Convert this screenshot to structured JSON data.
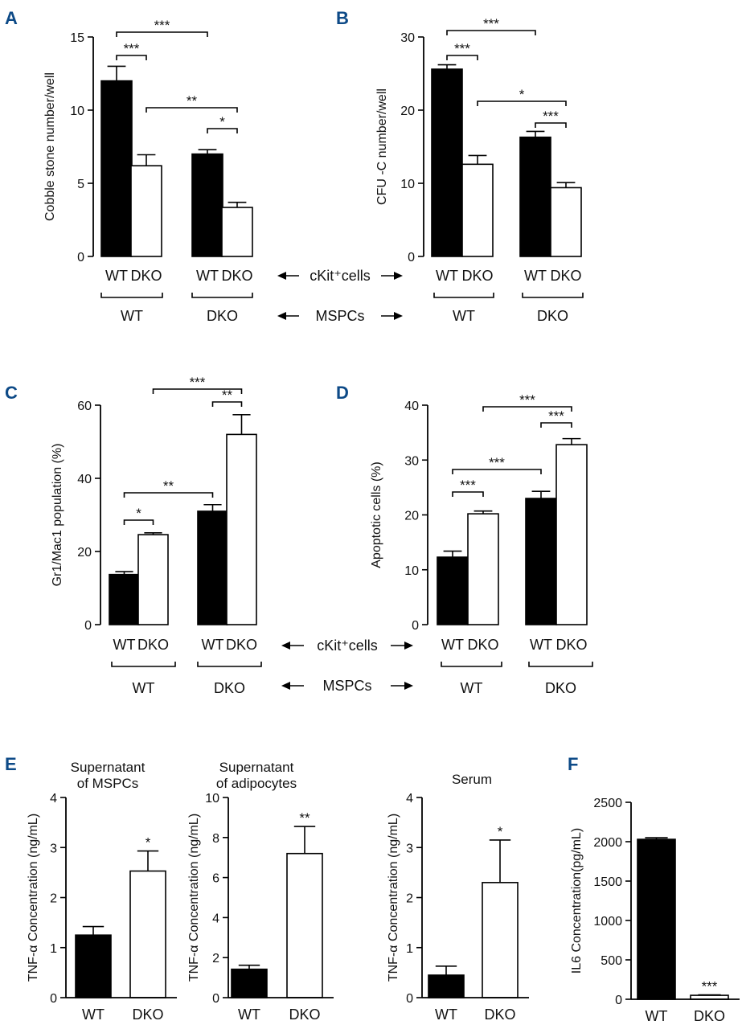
{
  "figure": {
    "shared_labels": {
      "ckit_row": "cKit⁺cells",
      "mspc_row": "MSPCs",
      "group_wt": "WT",
      "group_dko": "DKO"
    }
  },
  "chart_data": [
    {
      "panel": "A",
      "type": "bar",
      "ylabel": "Cobble stone number/well",
      "ylim": [
        0,
        15
      ],
      "yticks": [
        0,
        5,
        10,
        15
      ],
      "categories": [
        "WT",
        "DKO",
        "WT",
        "DKO"
      ],
      "groups": [
        "WT",
        "DKO"
      ],
      "values": [
        12.0,
        6.2,
        7.0,
        3.35
      ],
      "errors": [
        1.0,
        0.75,
        0.3,
        0.35
      ],
      "fills": [
        "#000000",
        "#ffffff",
        "#000000",
        "#ffffff"
      ],
      "significance": [
        {
          "from": 0,
          "to": 1,
          "label": "***"
        },
        {
          "from": 0,
          "to": 2,
          "label": "***"
        },
        {
          "from": 1,
          "to": 3,
          "label": "**"
        },
        {
          "from": 2,
          "to": 3,
          "label": "*"
        }
      ]
    },
    {
      "panel": "B",
      "type": "bar",
      "ylabel": "CFU -C number/well",
      "ylim": [
        0,
        30
      ],
      "yticks": [
        0,
        10,
        20,
        30
      ],
      "categories": [
        "WT",
        "DKO",
        "WT",
        "DKO"
      ],
      "groups": [
        "WT",
        "DKO"
      ],
      "values": [
        25.6,
        12.6,
        16.3,
        9.4
      ],
      "errors": [
        0.6,
        1.2,
        0.8,
        0.7
      ],
      "fills": [
        "#000000",
        "#ffffff",
        "#000000",
        "#ffffff"
      ],
      "significance": [
        {
          "from": 0,
          "to": 1,
          "label": "***"
        },
        {
          "from": 0,
          "to": 2,
          "label": "***"
        },
        {
          "from": 1,
          "to": 3,
          "label": "*"
        },
        {
          "from": 2,
          "to": 3,
          "label": "***"
        }
      ]
    },
    {
      "panel": "C",
      "type": "bar",
      "ylabel": "Gr1/Mac1 population (%)",
      "ylim": [
        0,
        60
      ],
      "yticks": [
        0,
        20,
        40,
        60
      ],
      "categories": [
        "WT",
        "DKO",
        "WT",
        "DKO"
      ],
      "groups": [
        "WT",
        "DKO"
      ],
      "values": [
        13.7,
        24.6,
        31.0,
        52.0
      ],
      "errors": [
        0.8,
        0.5,
        1.8,
        5.4
      ],
      "fills": [
        "#000000",
        "#ffffff",
        "#000000",
        "#ffffff"
      ],
      "significance": [
        {
          "from": 0,
          "to": 1,
          "label": "*"
        },
        {
          "from": 0,
          "to": 2,
          "label": "**"
        },
        {
          "from": 1,
          "to": 3,
          "label": "***"
        },
        {
          "from": 2,
          "to": 3,
          "label": "**"
        }
      ]
    },
    {
      "panel": "D",
      "type": "bar",
      "ylabel": "Apoptotic cells (%)",
      "ylim": [
        0,
        40
      ],
      "yticks": [
        0,
        10,
        20,
        30,
        40
      ],
      "categories": [
        "WT",
        "DKO",
        "WT",
        "DKO"
      ],
      "groups": [
        "WT",
        "DKO"
      ],
      "values": [
        12.3,
        20.2,
        23.0,
        32.8
      ],
      "errors": [
        1.1,
        0.5,
        1.3,
        1.1
      ],
      "fills": [
        "#000000",
        "#ffffff",
        "#000000",
        "#ffffff"
      ],
      "significance": [
        {
          "from": 0,
          "to": 1,
          "label": "***"
        },
        {
          "from": 0,
          "to": 2,
          "label": "***"
        },
        {
          "from": 1,
          "to": 3,
          "label": "***"
        },
        {
          "from": 2,
          "to": 3,
          "label": "***"
        }
      ]
    },
    {
      "panel": "E",
      "type": "bar",
      "title": "Supernatant\nof MSPCs",
      "ylabel": "TNF-α Concentration (ng/mL)",
      "ylim": [
        0,
        4
      ],
      "yticks": [
        0,
        1,
        2,
        3,
        4
      ],
      "categories": [
        "WT",
        "DKO"
      ],
      "values": [
        1.25,
        2.53
      ],
      "errors": [
        0.17,
        0.4
      ],
      "fills": [
        "#000000",
        "#ffffff"
      ],
      "bar_labels": [
        "",
        "*"
      ]
    },
    {
      "type": "bar",
      "title": "Supernatant\nof adipocytes",
      "ylabel": "TNF-α Concentration (ng/mL)",
      "ylim": [
        0,
        10
      ],
      "yticks": [
        0,
        2,
        4,
        6,
        8,
        10
      ],
      "categories": [
        "WT",
        "DKO"
      ],
      "values": [
        1.42,
        7.2
      ],
      "errors": [
        0.2,
        1.35
      ],
      "fills": [
        "#000000",
        "#ffffff"
      ],
      "bar_labels": [
        "",
        "**"
      ]
    },
    {
      "type": "bar",
      "title": "Serum",
      "ylabel": "TNF-α Concentration (ng/mL)",
      "ylim": [
        0,
        4
      ],
      "yticks": [
        0,
        1,
        2,
        3,
        4
      ],
      "categories": [
        "WT",
        "DKO"
      ],
      "values": [
        0.45,
        2.3
      ],
      "errors": [
        0.18,
        0.85
      ],
      "fills": [
        "#000000",
        "#ffffff"
      ],
      "bar_labels": [
        "",
        "*"
      ]
    },
    {
      "panel": "F",
      "type": "bar",
      "ylabel": "IL6 Concentration(pg/mL)",
      "ylim": [
        0,
        2500
      ],
      "yticks": [
        0,
        500,
        1000,
        1500,
        2000,
        2500
      ],
      "categories": [
        "WT",
        "DKO"
      ],
      "values": [
        2030,
        50
      ],
      "errors": [
        20,
        5
      ],
      "fills": [
        "#000000",
        "#ffffff"
      ],
      "bar_labels": [
        "",
        "***"
      ]
    }
  ]
}
